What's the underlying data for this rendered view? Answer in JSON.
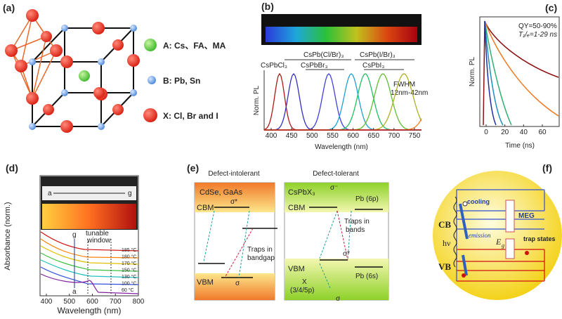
{
  "panels": {
    "a": {
      "label": "(a)",
      "legend": [
        "A: Cs、FA、MA",
        "B: Pb, Sn",
        "X: Cl, Br and I"
      ]
    },
    "b": {
      "label": "(b)",
      "mixed_labels": [
        "CsPb(Cl/Br)₃",
        "CsPb(I/Br)₃"
      ],
      "compound_labels": [
        "CsPbCl₃",
        "CsPbBr₃",
        "CsPbI₃"
      ],
      "fwhm": [
        "FWHM",
        "12nm-42nm"
      ],
      "y_label": "Norm. PL",
      "x_label": "Wavelength (nm)",
      "x_ticks": [
        400,
        450,
        500,
        550,
        600,
        650,
        700,
        750
      ]
    },
    "c": {
      "label": "(c)",
      "notes": [
        "QY=50-90%",
        "T₁/ₑ=1-29 ns"
      ],
      "y_label": "Norm. PL",
      "x_label": "Time (ns)",
      "x_ticks": [
        0,
        20,
        40,
        60
      ]
    },
    "d": {
      "label": "(d)",
      "photo_arrow": [
        "a",
        "g"
      ],
      "curve_arrow": [
        "g",
        "a"
      ],
      "window": [
        "tunable",
        "window"
      ],
      "temperatures": [
        "185 °C",
        "180 °C",
        "170 °C",
        "150 °C",
        "130 °C",
        "100 °C",
        "60 °C"
      ],
      "y_label": "Absorbance (norm.)",
      "x_label": "Wavelength (nm)",
      "x_ticks": [
        400,
        500,
        600,
        700,
        800
      ]
    },
    "e": {
      "label": "(e)",
      "headers": [
        "Defect-intolerant",
        "Defect-tolerant"
      ],
      "left": {
        "material": "CdSe, GaAs",
        "cbm": "CBM",
        "vbm": "VBM",
        "sigma_star": "σ*",
        "sigma": "σ",
        "traps": [
          "Traps in",
          "bandgap"
        ]
      },
      "right": {
        "material": "CsPbX₃",
        "cbm": "CBM",
        "pb_6p": "Pb (6p)",
        "traps": [
          "Traps in",
          "bands"
        ],
        "vbm": "VBM",
        "x": "X",
        "x_orbital": "(3/4/5p)",
        "pb_6s": "Pb (6s)",
        "sigma_star": "σ*",
        "sigma": "σ",
        "sigma_star_top": "σ⁻"
      }
    },
    "f": {
      "label": "(f)",
      "cb": "CB",
      "vb": "VB",
      "hv": "hν",
      "cooling": "cooling",
      "meg": "MEG",
      "emission": "emission",
      "eg": "E",
      "eg_sub": "g",
      "trap_states": "trap states"
    }
  }
}
